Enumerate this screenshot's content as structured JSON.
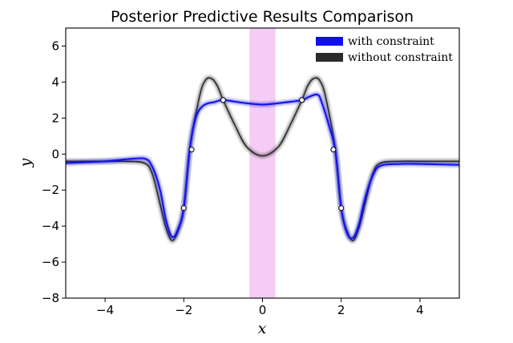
{
  "chart_data": {
    "type": "line",
    "title": "Posterior Predictive Results Comparison",
    "xlabel": "x",
    "ylabel": "y",
    "xlim": [
      -5,
      5
    ],
    "ylim": [
      -8,
      7
    ],
    "xticks": [
      -4,
      -2,
      0,
      2,
      4
    ],
    "yticks": [
      -8,
      -6,
      -4,
      -2,
      0,
      2,
      4,
      6
    ],
    "xtick_labels": [
      "−4",
      "−2",
      "0",
      "2",
      "4"
    ],
    "ytick_labels": [
      "−8",
      "−6",
      "−4",
      "−2",
      "0",
      "2",
      "4",
      "6"
    ],
    "grid": false,
    "legend_position": "top-right",
    "constraint_region": {
      "x0": -0.33,
      "x1": 0.33,
      "color": "#f5ccf5"
    },
    "series": [
      {
        "name": "with constraint",
        "color": "#1010ee",
        "x": [
          -5,
          -4,
          -3.5,
          -3,
          -2.8,
          -2.6,
          -2.45,
          -2.3,
          -2.15,
          -2,
          -1.85,
          -1.7,
          -1.5,
          -1.2,
          -1,
          -0.5,
          0,
          0.5,
          1,
          1.2,
          1.4,
          1.5,
          1.7,
          1.85,
          2,
          2.15,
          2.3,
          2.45,
          2.6,
          2.8,
          3,
          3.5,
          4,
          5
        ],
        "y": [
          -0.5,
          -0.4,
          -0.3,
          -0.25,
          -0.7,
          -2.0,
          -3.7,
          -4.6,
          -4.2,
          -3.0,
          0.25,
          2.0,
          2.7,
          2.9,
          3.0,
          2.85,
          2.75,
          2.85,
          3.0,
          3.2,
          3.3,
          2.9,
          1.5,
          0.2,
          -3.0,
          -4.4,
          -4.65,
          -3.9,
          -2.5,
          -1.2,
          -0.65,
          -0.55,
          -0.55,
          -0.6
        ]
      },
      {
        "name": "without constraint",
        "color": "#2b2b2b",
        "x": [
          -5,
          -4,
          -3.5,
          -3,
          -2.8,
          -2.6,
          -2.45,
          -2.3,
          -2.15,
          -2,
          -1.85,
          -1.6,
          -1.45,
          -1.3,
          -1.15,
          -1,
          -0.7,
          -0.4,
          0,
          0.4,
          0.7,
          1,
          1.15,
          1.3,
          1.45,
          1.6,
          1.85,
          2,
          2.15,
          2.3,
          2.45,
          2.6,
          2.8,
          3,
          3.5,
          4,
          5
        ],
        "y": [
          -0.4,
          -0.4,
          -0.4,
          -0.5,
          -1.1,
          -2.8,
          -4.1,
          -4.8,
          -4.3,
          -3.0,
          0.25,
          3.2,
          4.1,
          4.2,
          3.8,
          3.0,
          1.6,
          0.4,
          -0.1,
          0.4,
          1.6,
          3.0,
          3.8,
          4.2,
          4.1,
          3.2,
          0.25,
          -3.0,
          -4.3,
          -4.8,
          -4.1,
          -2.8,
          -1.1,
          -0.5,
          -0.4,
          -0.4,
          -0.4
        ]
      }
    ],
    "observations": {
      "x": [
        -2,
        -1.8,
        -1,
        1,
        1.8,
        2
      ],
      "y": [
        -3,
        0.25,
        3,
        3,
        0.25,
        -3
      ]
    }
  }
}
